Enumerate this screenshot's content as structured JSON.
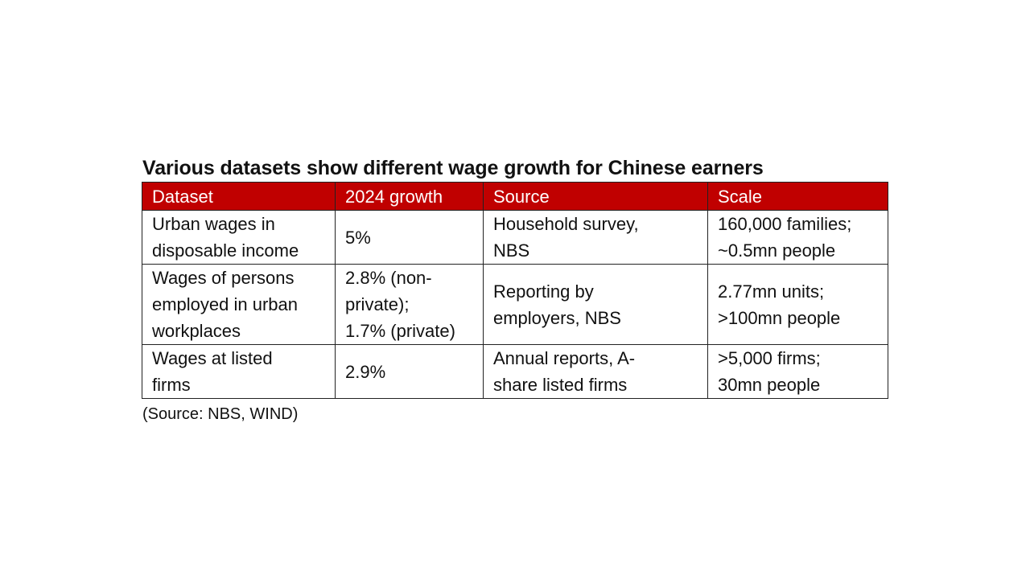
{
  "title": "Various datasets show different wage growth for Chinese earners",
  "colors": {
    "header_background": "#c00000",
    "header_text": "#ffffff",
    "border": "#222222"
  },
  "table": {
    "headers": [
      "Dataset",
      "2024 growth",
      "Source",
      "Scale"
    ],
    "rows": [
      {
        "dataset": [
          "Urban wages in",
          "disposable income"
        ],
        "growth": [
          "5%"
        ],
        "source": [
          "Household survey,",
          "NBS"
        ],
        "scale": [
          "160,000 families;",
          "~0.5mn people"
        ]
      },
      {
        "dataset": [
          "Wages of persons",
          "employed in urban",
          "workplaces"
        ],
        "growth": [
          "2.8% (non-",
          "private);",
          "1.7% (private)"
        ],
        "source": [
          "Reporting by",
          "employers, NBS"
        ],
        "scale": [
          "2.77mn units;",
          ">100mn people"
        ]
      },
      {
        "dataset": [
          "Wages at listed",
          "firms"
        ],
        "growth": [
          "2.9%"
        ],
        "source": [
          "Annual reports, A-",
          "share listed firms"
        ],
        "scale": [
          ">5,000 firms;",
          "30mn people"
        ]
      }
    ]
  },
  "source_note": "(Source: NBS, WIND)"
}
